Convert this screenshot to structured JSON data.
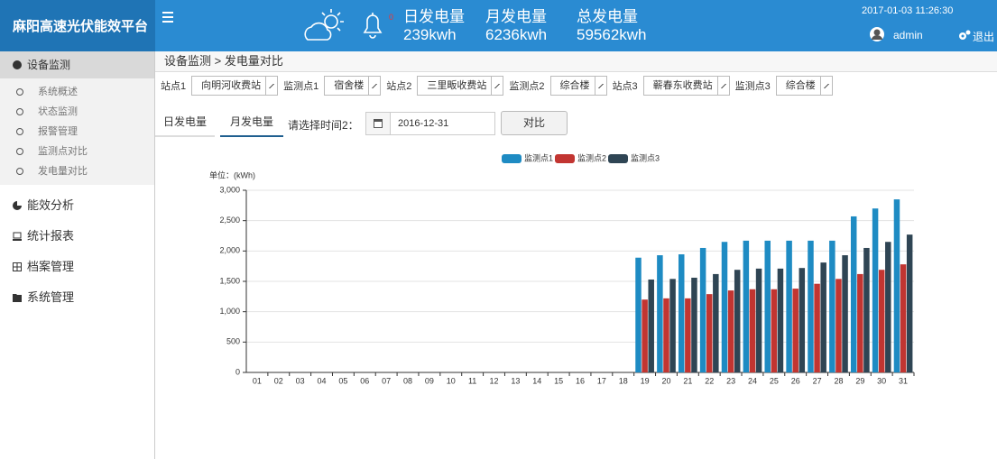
{
  "header": {
    "title": "麻阳高速光伏能效平台",
    "alert_count": "0",
    "stats": [
      {
        "label": "日发电量",
        "value": "239kwh"
      },
      {
        "label": "月发电量",
        "value": "6236kwh"
      },
      {
        "label": "总发电量",
        "value": "59562kwh"
      }
    ],
    "datetime": "2017-01-03 11:26:30",
    "user": "admin",
    "logout": "退出"
  },
  "sidebar": {
    "active": "设备监测",
    "sub_items": [
      "系统概述",
      "状态监测",
      "报警管理",
      "监测点对比",
      "发电量对比"
    ],
    "items": [
      "能效分析",
      "统计报表",
      "档案管理",
      "系统管理"
    ]
  },
  "content": {
    "breadcrumb": "设备监测 > 发电量对比",
    "filters": [
      {
        "label": "站点1",
        "value": "向明河收费站"
      },
      {
        "label": "监测点1",
        "value": "宿舍楼"
      },
      {
        "label": "站点2",
        "value": "三里畈收费站"
      },
      {
        "label": "监测点2",
        "value": "综合楼"
      },
      {
        "label": "站点3",
        "value": "蕲春东收费站"
      },
      {
        "label": "监测点3",
        "value": "综合楼"
      }
    ],
    "tabs": [
      "日发电量",
      "月发电量"
    ],
    "time_label": "请选择时间2：",
    "date": "2016-12-31",
    "button": "对比"
  },
  "chart_data": {
    "type": "bar",
    "unit_label": "单位：(kWh)",
    "categories": [
      "01",
      "02",
      "03",
      "04",
      "05",
      "06",
      "07",
      "08",
      "09",
      "10",
      "11",
      "12",
      "13",
      "14",
      "15",
      "16",
      "17",
      "18",
      "19",
      "20",
      "21",
      "22",
      "23",
      "24",
      "25",
      "26",
      "27",
      "28",
      "29",
      "30",
      "31"
    ],
    "series": [
      {
        "name": "监测点1",
        "color": "#1e8bc3",
        "values": [
          null,
          null,
          null,
          null,
          null,
          null,
          null,
          null,
          null,
          null,
          null,
          null,
          null,
          null,
          null,
          null,
          null,
          null,
          1890,
          1930,
          1945,
          2050,
          2150,
          2170,
          2170,
          2170,
          2170,
          2170,
          2570,
          2700,
          2850
        ]
      },
      {
        "name": "监测点2",
        "color": "#c23531",
        "values": [
          null,
          null,
          null,
          null,
          null,
          null,
          null,
          null,
          null,
          null,
          null,
          null,
          null,
          null,
          null,
          null,
          null,
          null,
          1200,
          1220,
          1220,
          1290,
          1350,
          1370,
          1370,
          1380,
          1460,
          1540,
          1620,
          1690,
          1780
        ]
      },
      {
        "name": "监测点3",
        "color": "#2f4554",
        "values": [
          null,
          null,
          null,
          null,
          null,
          null,
          null,
          null,
          null,
          null,
          null,
          null,
          null,
          null,
          null,
          null,
          null,
          null,
          1530,
          1540,
          1560,
          1620,
          1690,
          1710,
          1710,
          1720,
          1810,
          1930,
          2050,
          2150,
          2270
        ]
      }
    ],
    "ylim": [
      0,
      3000
    ],
    "yticks": [
      0,
      500,
      {
        "value": 1000,
        "label": "1,000"
      },
      {
        "value": 1500,
        "label": "1,500"
      },
      {
        "value": 2000,
        "label": "2,000"
      },
      {
        "value": 2500,
        "label": "2,500"
      },
      {
        "value": 3000,
        "label": "3,000"
      }
    ],
    "grid": true,
    "legend": "top"
  }
}
